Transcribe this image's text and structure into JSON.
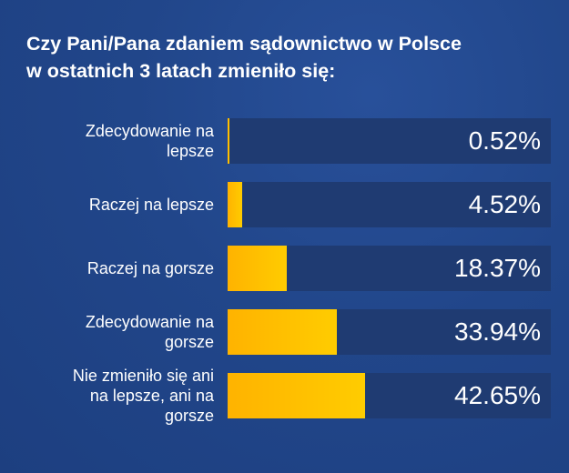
{
  "chart_data": {
    "type": "bar",
    "orientation": "horizontal",
    "title": "Czy Pani/Pana zdaniem sądownictwo w Polsce w ostatnich 3 latach zmieniło się:",
    "title_lines": [
      "Czy Pani/Pana zdaniem sądownictwo w Polsce",
      "w ostatnich 3 latach zmieniło się:"
    ],
    "xlabel": "",
    "ylabel": "",
    "xlim": [
      0,
      100
    ],
    "grid": false,
    "legend": null,
    "unit": "%",
    "categories": [
      "Zdecydowanie na lepsze",
      "Raczej na lepsze",
      "Raczej na gorsze",
      "Zdecydowanie na gorsze",
      "Nie zmieniło się ani na lepsze, ani na gorsze"
    ],
    "values": [
      0.52,
      4.52,
      18.37,
      33.94,
      42.65
    ],
    "value_labels": [
      "0.52%",
      "4.52%",
      "18.37%",
      "33.94%",
      "42.65%"
    ],
    "colors": {
      "background": "#22468a",
      "track": "#1f3b72",
      "bar_start": "#ffb300",
      "bar_end": "#ffcc00",
      "text": "#ffffff"
    }
  },
  "rows": [
    {
      "label_lines": [
        "Zdecydowanie na",
        "lepsze"
      ],
      "value": 0.52,
      "value_label": "0.52%"
    },
    {
      "label_lines": [
        "Raczej na lepsze"
      ],
      "value": 4.52,
      "value_label": "4.52%"
    },
    {
      "label_lines": [
        "Raczej na gorsze"
      ],
      "value": 18.37,
      "value_label": "18.37%"
    },
    {
      "label_lines": [
        "Zdecydowanie na",
        "gorsze"
      ],
      "value": 33.94,
      "value_label": "33.94%"
    },
    {
      "label_lines": [
        "Nie zmieniło się ani",
        "na lepsze, ani na",
        "gorsze"
      ],
      "value": 42.65,
      "value_label": "42.65%"
    }
  ]
}
